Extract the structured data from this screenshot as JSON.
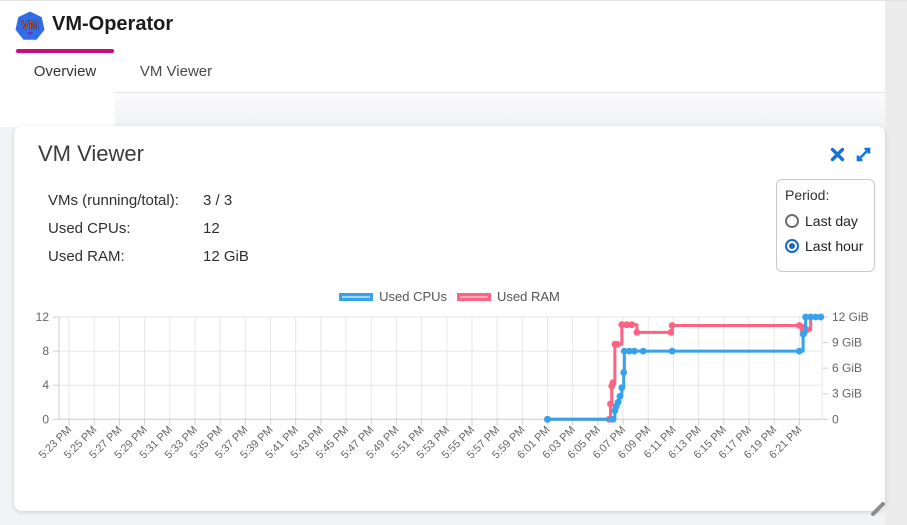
{
  "header": {
    "title": "VM-Operator",
    "logo_text": "VM"
  },
  "tabs": [
    {
      "label": "Overview",
      "active": true
    },
    {
      "label": "VM Viewer",
      "active": false
    }
  ],
  "colors": {
    "tab_indicator": "#cc0c77",
    "card_icon_blue": "#1273de",
    "radio_accent": "#1669c9",
    "logo_blue": "#326de6",
    "logo_text_orange": "#e8630f"
  },
  "card": {
    "title": "VM Viewer",
    "stats": [
      {
        "label": "VMs (running/total):",
        "value": "3 / 3"
      },
      {
        "label": "Used CPUs:",
        "value": "12"
      },
      {
        "label": "Used RAM:",
        "value": "12 GiB"
      }
    ],
    "period": {
      "label": "Period:",
      "options": [
        {
          "label": "Last day",
          "selected": false
        },
        {
          "label": "Last hour",
          "selected": true
        }
      ]
    }
  },
  "chart_data": {
    "type": "line",
    "stepped": true,
    "grid": true,
    "legend_position": "top",
    "x_unit": "minutes since 5:23 PM",
    "x_axis": {
      "tick_interval_min": 2,
      "tick_labels": [
        "5:23 PM",
        "5:25 PM",
        "5:27 PM",
        "5:29 PM",
        "5:31 PM",
        "5:33 PM",
        "5:35 PM",
        "5:37 PM",
        "5:39 PM",
        "5:41 PM",
        "5:43 PM",
        "5:45 PM",
        "5:47 PM",
        "5:49 PM",
        "5:51 PM",
        "5:53 PM",
        "5:55 PM",
        "5:57 PM",
        "5:59 PM",
        "6:01 PM",
        "6:03 PM",
        "6:05 PM",
        "6:07 PM",
        "6:09 PM",
        "6:11 PM",
        "6:13 PM",
        "6:15 PM",
        "6:17 PM",
        "6:19 PM",
        "6:21 PM"
      ],
      "range": [
        -0.8,
        59.8
      ]
    },
    "y_left": {
      "ticks": [
        "0",
        "4",
        "8",
        "12"
      ],
      "tick_values": [
        0,
        4,
        8,
        12
      ],
      "range": [
        0,
        12
      ]
    },
    "y_right": {
      "ticks": [
        "0",
        "3 GiB",
        "6 GiB",
        "9 GiB",
        "12 GiB"
      ],
      "tick_values": [
        0,
        3,
        6,
        9,
        12
      ],
      "range": [
        0,
        12
      ]
    },
    "series": [
      {
        "name": "Used CPUs",
        "axis": "left",
        "color": "#36a2eb",
        "fill": "#aad4f3",
        "points": [
          [
            38,
            0
          ],
          [
            43.2,
            0
          ],
          [
            43.35,
            1
          ],
          [
            43.45,
            1.5
          ],
          [
            43.6,
            2
          ],
          [
            43.75,
            2.7
          ],
          [
            43.9,
            3.7
          ],
          [
            44.05,
            5.5
          ],
          [
            44.1,
            8
          ],
          [
            44.5,
            8
          ],
          [
            44.9,
            8
          ],
          [
            45.6,
            8
          ],
          [
            47.9,
            8
          ],
          [
            58,
            8
          ],
          [
            58.3,
            10
          ],
          [
            58.5,
            12
          ],
          [
            58.9,
            12
          ],
          [
            59.3,
            12
          ],
          [
            59.7,
            12
          ]
        ]
      },
      {
        "name": "Used RAM",
        "axis": "right",
        "color": "#ff6384",
        "fill": "#f9aabb",
        "points": [
          [
            38,
            0
          ],
          [
            42.9,
            0
          ],
          [
            43.0,
            1.8
          ],
          [
            43.1,
            3.9
          ],
          [
            43.2,
            4.3
          ],
          [
            43.35,
            8.8
          ],
          [
            43.55,
            8.8
          ],
          [
            43.9,
            11.1
          ],
          [
            44.3,
            11.1
          ],
          [
            44.7,
            11.1
          ],
          [
            45.1,
            10.2
          ],
          [
            47.8,
            10.2
          ],
          [
            47.9,
            11
          ],
          [
            58,
            11
          ],
          [
            58.3,
            10.5
          ],
          [
            58.6,
            10.5
          ],
          [
            58.9,
            12
          ],
          [
            59.7,
            12
          ]
        ]
      }
    ]
  }
}
